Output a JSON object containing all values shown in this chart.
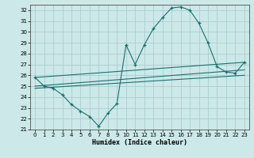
{
  "xlabel": "Humidex (Indice chaleur)",
  "bg_color": "#cce8e8",
  "grid_color": "#aacece",
  "line_color": "#1a7070",
  "xlim": [
    -0.5,
    23.5
  ],
  "ylim": [
    21.0,
    32.5
  ],
  "yticks": [
    21,
    22,
    23,
    24,
    25,
    26,
    27,
    28,
    29,
    30,
    31,
    32
  ],
  "xticks": [
    0,
    1,
    2,
    3,
    4,
    5,
    6,
    7,
    8,
    9,
    10,
    11,
    12,
    13,
    14,
    15,
    16,
    17,
    18,
    19,
    20,
    21,
    22,
    23
  ],
  "curve1_x": [
    0,
    1,
    2,
    3,
    4,
    5,
    6,
    7,
    8,
    9,
    10,
    11,
    12,
    13,
    14,
    15,
    16,
    17,
    18,
    19,
    20,
    21,
    22,
    23
  ],
  "curve1_y": [
    25.8,
    25.0,
    24.8,
    24.2,
    23.3,
    22.7,
    22.2,
    21.3,
    22.5,
    23.4,
    28.8,
    27.0,
    28.8,
    30.3,
    31.3,
    32.2,
    32.3,
    32.0,
    30.8,
    29.0,
    26.8,
    26.3,
    26.2,
    27.2
  ],
  "line1_x": [
    0,
    23
  ],
  "line1_y": [
    25.8,
    27.2
  ],
  "line2_x": [
    0,
    23
  ],
  "line2_y": [
    25.0,
    26.5
  ],
  "line3_x": [
    0,
    23
  ],
  "line3_y": [
    24.8,
    26.0
  ],
  "figsize": [
    3.2,
    2.0
  ],
  "dpi": 100
}
